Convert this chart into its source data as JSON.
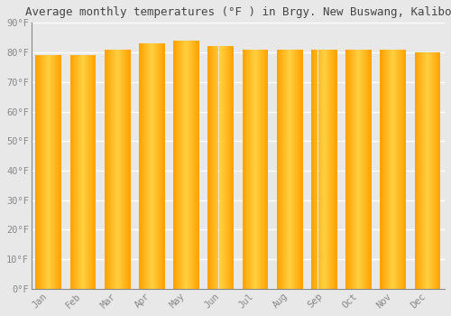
{
  "title": "Average monthly temperatures (°F ) in Brgy. New Buswang, Kalibo",
  "months": [
    "Jan",
    "Feb",
    "Mar",
    "Apr",
    "May",
    "Jun",
    "Jul",
    "Aug",
    "Sep",
    "Oct",
    "Nov",
    "Dec"
  ],
  "values": [
    79,
    79,
    81,
    83,
    84,
    82,
    81,
    81,
    81,
    81,
    81,
    80
  ],
  "background_color": "#e8e8e8",
  "plot_bg_color": "#e8e8e8",
  "ylim": [
    0,
    90
  ],
  "yticks": [
    0,
    10,
    20,
    30,
    40,
    50,
    60,
    70,
    80,
    90
  ],
  "ytick_labels": [
    "0°F",
    "10°F",
    "20°F",
    "30°F",
    "40°F",
    "50°F",
    "60°F",
    "70°F",
    "80°F",
    "90°F"
  ],
  "grid_color": "#ffffff",
  "tick_color": "#888888",
  "title_fontsize": 9,
  "tick_fontsize": 7.5,
  "bar_color_center": "#FFD040",
  "bar_color_edge": "#FFA000",
  "bar_width": 0.75
}
